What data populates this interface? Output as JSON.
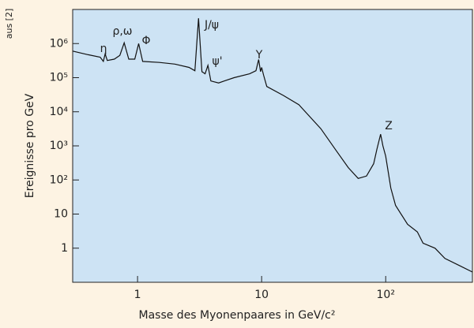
{
  "chart_data": {
    "type": "line",
    "xlabel": "Masse des Myonenpaares in GeV/c²",
    "ylabel": "Ereignisse pro GeV",
    "source": "aus [2]",
    "annotations": [
      "η",
      "ρ,ω",
      "Φ",
      "J/ψ",
      "ψ'",
      "Υ",
      "Z"
    ],
    "x": [
      0.3,
      0.4,
      0.5,
      0.53,
      0.548,
      0.57,
      0.65,
      0.72,
      0.78,
      0.85,
      0.95,
      1.02,
      1.1,
      1.5,
      2,
      2.6,
      2.9,
      3.1,
      3.3,
      3.5,
      3.69,
      3.9,
      4.5,
      5,
      6,
      8,
      9,
      9.46,
      9.8,
      10.0,
      10.36,
      11,
      15,
      20,
      30,
      40,
      50,
      60,
      70,
      80,
      85,
      91,
      95,
      100,
      110,
      120,
      150,
      180,
      200,
      250,
      300,
      400,
      500
    ],
    "values": [
      600000,
      470000,
      400000,
      300000,
      500000,
      320000,
      350000,
      450000,
      1050000,
      350000,
      350000,
      1000000,
      300000,
      280000,
      250000,
      200000,
      160000,
      5500000,
      150000,
      130000,
      230000,
      80000,
      70000,
      80000,
      100000,
      130000,
      160000,
      340000,
      150000,
      200000,
      120000,
      55000,
      30000,
      16000,
      3200,
      720,
      230,
      111,
      130,
      300,
      800,
      2200,
      1000,
      500,
      58,
      18,
      5,
      3,
      1.4,
      1,
      0.5,
      0.3,
      0.2
    ],
    "color": "#111111",
    "xlog": true,
    "ylog": true,
    "xlim": [
      0.3,
      500
    ],
    "ylim": [
      0.1,
      10000000
    ],
    "xticks": [
      1,
      10,
      {
        "value": 100,
        "label": "10²"
      }
    ],
    "yticks": [
      1,
      10,
      {
        "value": 100,
        "label": "10²"
      },
      {
        "value": 1000,
        "label": "10³"
      },
      {
        "value": 10000,
        "label": "10⁴"
      },
      {
        "value": 100000,
        "label": "10⁵"
      },
      {
        "value": 1000000,
        "label": "10⁶"
      }
    ],
    "grid": false
  }
}
